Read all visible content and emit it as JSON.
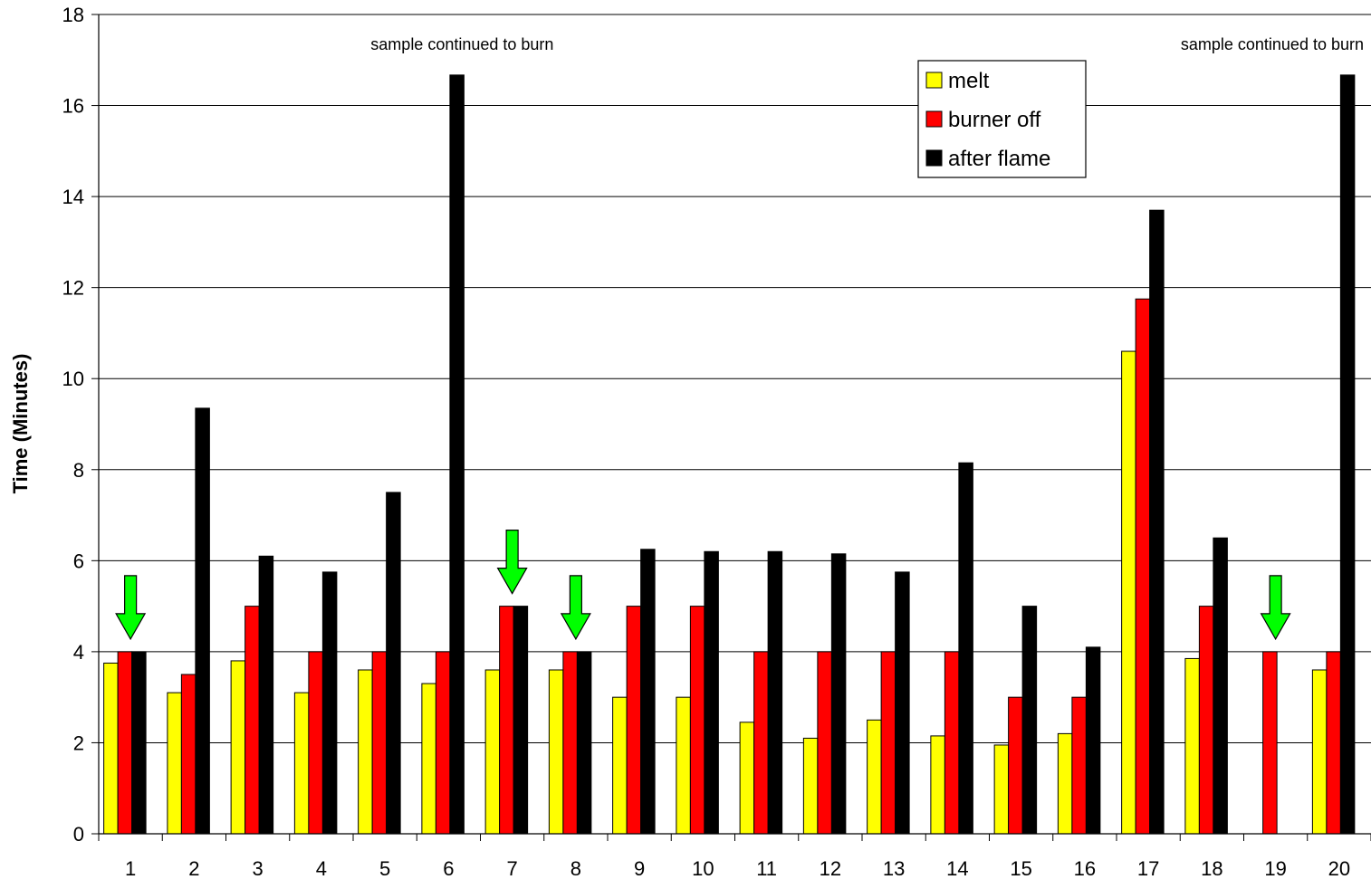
{
  "chart_data": {
    "type": "bar",
    "title": "",
    "xlabel": "",
    "ylabel": "Time (Minutes)",
    "ylim": [
      0,
      18
    ],
    "yticks": [
      0,
      2,
      4,
      6,
      8,
      10,
      12,
      14,
      16,
      18
    ],
    "grid": true,
    "legend_position": "top-right",
    "categories": [
      "1",
      "2",
      "3",
      "4",
      "5",
      "6",
      "7",
      "8",
      "9",
      "10",
      "11",
      "12",
      "13",
      "14",
      "15",
      "16",
      "17",
      "18",
      "19",
      "20"
    ],
    "series": [
      {
        "name": "melt",
        "color": "#FFFF00",
        "values": [
          3.75,
          3.1,
          3.8,
          3.1,
          3.6,
          3.3,
          3.6,
          3.6,
          3.0,
          3.0,
          2.45,
          2.1,
          2.5,
          2.15,
          1.95,
          2.2,
          10.6,
          3.85,
          null,
          3.6
        ]
      },
      {
        "name": "burner off",
        "color": "#FF0000",
        "values": [
          4,
          3.5,
          5,
          4,
          4,
          4,
          5,
          4,
          5,
          5,
          4,
          4,
          4,
          4,
          3,
          3,
          11.75,
          5,
          4,
          4
        ]
      },
      {
        "name": "after flame",
        "color": "#000000",
        "values": [
          4,
          9.35,
          6.1,
          5.75,
          7.5,
          16.67,
          5,
          4,
          6.25,
          6.2,
          6.2,
          6.15,
          5.75,
          8.15,
          5,
          4.1,
          13.7,
          6.5,
          null,
          16.67
        ]
      }
    ],
    "annotations": [
      {
        "text": "sample continued to burn",
        "category": "6"
      },
      {
        "text": "sample continued to burn",
        "category": "20"
      }
    ],
    "arrows": {
      "color": "#00FF00",
      "markers": [
        {
          "category": "1",
          "points_to": 4
        },
        {
          "category": "7",
          "points_to": 5
        },
        {
          "category": "8",
          "points_to": 4
        },
        {
          "category": "19",
          "points_to": 4
        }
      ]
    }
  }
}
